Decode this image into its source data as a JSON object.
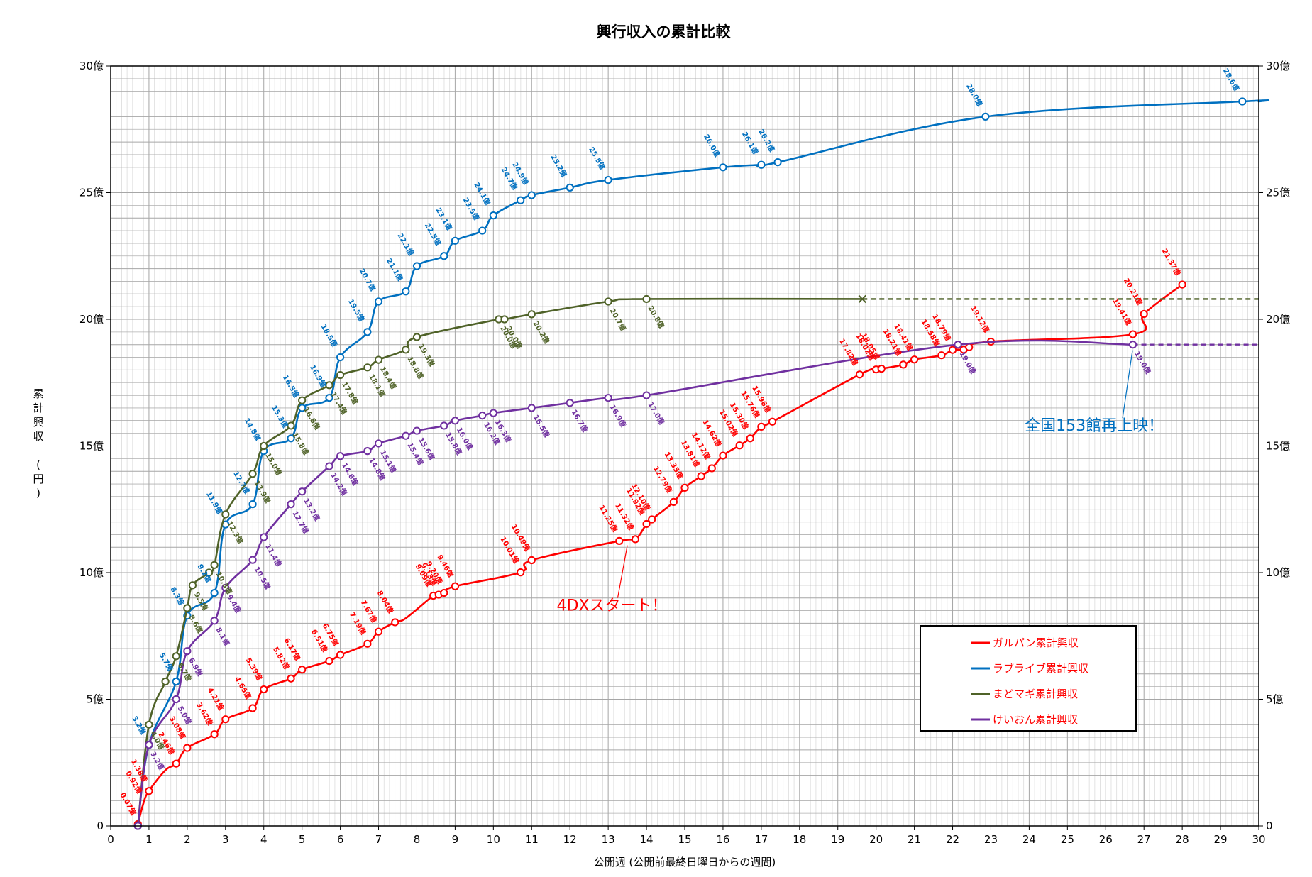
{
  "chart_data": {
    "type": "line",
    "title": "興行収入の累計比較",
    "xlabel": "公開週 (公開前最終日曜日からの週間)",
    "ylabel": "累計興収 (円)",
    "xlim": [
      0,
      30
    ],
    "ylim": [
      0,
      30
    ],
    "x_ticks": [
      "0",
      "1",
      "2",
      "3",
      "4",
      "5",
      "6",
      "7",
      "8",
      "9",
      "10",
      "11",
      "12",
      "13",
      "14",
      "15",
      "16",
      "17",
      "18",
      "19",
      "20",
      "21",
      "22",
      "23",
      "24",
      "25",
      "26",
      "27",
      "28",
      "29",
      "30"
    ],
    "y_ticks_left": [
      "0",
      "5億",
      "10億",
      "15億",
      "20億",
      "25億",
      "30億"
    ],
    "y_ticks_right": [
      "0",
      "5億",
      "10億",
      "15億",
      "20億",
      "25億",
      "30億"
    ],
    "grid": true,
    "legend_position": "bottom-right",
    "legend_border_color": "#000000",
    "series": [
      {
        "name": "ガルパン累計興収",
        "color": "#FF0000",
        "x": [
          0.71,
          0.86,
          1.0,
          1.43,
          1.71,
          2.0,
          2.71,
          3.0,
          3.71,
          4.0,
          4.71,
          5.0,
          5.71,
          6.0,
          6.71,
          7.0,
          7.43,
          7.71,
          8.43,
          8.57,
          8.71,
          9.0,
          10.71,
          11.0,
          13.29,
          13.71,
          14.0,
          14.14,
          14.71,
          15.0,
          15.43,
          15.71,
          16.0,
          16.43,
          16.71,
          17.0,
          17.29,
          19.57,
          20.0,
          20.14,
          20.71,
          21.0,
          21.71,
          22.0,
          22.29,
          22.43,
          23.0,
          26.71,
          27.0,
          28.0
        ],
        "y": [
          0.07,
          0.92,
          1.38,
          2.2,
          2.46,
          3.08,
          3.62,
          4.21,
          4.65,
          5.39,
          5.82,
          6.17,
          6.51,
          6.75,
          7.19,
          7.67,
          8.04,
          8.2,
          9.09,
          9.13,
          9.2,
          9.46,
          10.01,
          10.49,
          11.25,
          11.32,
          11.92,
          12.1,
          12.79,
          13.35,
          13.81,
          14.12,
          14.62,
          15.02,
          15.3,
          15.76,
          15.96,
          17.82,
          18.02,
          18.05,
          18.21,
          18.41,
          18.58,
          18.79,
          18.8,
          18.9,
          19.12,
          19.41,
          20.21,
          21.37
        ],
        "labels": [
          "0.07億",
          "0.92億",
          "1.38億",
          "",
          "2.46億",
          "3.08億",
          "3.62億",
          "4.21億",
          "4.65億",
          "5.39億",
          "5.82億",
          "6.17億",
          "6.51億",
          "6.75億",
          "7.19億",
          "7.67億",
          "8.04億",
          "",
          "9.09億",
          "9.13億",
          "9.20億",
          "9.46億",
          "10.01億",
          "10.49億",
          "11.25億",
          "11.32億",
          "11.92億",
          "12.10億",
          "12.79億",
          "13.35億",
          "13.81億",
          "14.12億",
          "14.62億",
          "15.02億",
          "15.30億",
          "15.76億",
          "15.96億",
          "17.82億",
          "18.02億",
          "18.05億",
          "18.21億",
          "18.41億",
          "18.58億",
          "18.79億",
          "",
          "",
          "19.12億",
          "19.41億",
          "20.21億",
          "21.37億"
        ],
        "markers": [
          0,
          2,
          4,
          5,
          6,
          7,
          8,
          9,
          10,
          11,
          12,
          13,
          14,
          15,
          16,
          18,
          19,
          20,
          21,
          22,
          23,
          24,
          25,
          26,
          27,
          28,
          29,
          30,
          31,
          32,
          33,
          34,
          35,
          36,
          37,
          38,
          39,
          40,
          41,
          42,
          43,
          44,
          45,
          46,
          47,
          48,
          49
        ],
        "end_style": "none"
      },
      {
        "name": "ラブライブ累計興収",
        "color": "#0070C0",
        "x": [
          0.71,
          1.0,
          1.71,
          2.0,
          2.71,
          3.0,
          3.71,
          4.0,
          4.71,
          5.0,
          5.71,
          6.0,
          6.71,
          7.0,
          7.71,
          8.0,
          8.71,
          9.0,
          9.71,
          10.0,
          10.71,
          11.0,
          12.0,
          13.0,
          16.0,
          17.0,
          17.43,
          22.86,
          29.57,
          30.0
        ],
        "y": [
          0,
          3.2,
          5.7,
          8.3,
          9.2,
          11.9,
          12.7,
          14.8,
          15.3,
          16.5,
          16.9,
          18.5,
          19.5,
          20.7,
          21.1,
          22.1,
          22.5,
          23.1,
          23.5,
          24.1,
          24.7,
          24.9,
          25.2,
          25.5,
          26.0,
          26.1,
          26.2,
          28.0,
          28.6,
          28.6
        ],
        "labels": [
          "",
          "3.2億",
          "5.7億",
          "8.3億",
          "9.2億",
          "11.9億",
          "12.7億",
          "14.8億",
          "15.3億",
          "16.5億",
          "16.9億",
          "18.5億",
          "19.5億",
          "20.7億",
          "21.1億",
          "22.1億",
          "22.5億",
          "23.1億",
          "23.5億",
          "24.1億",
          "24.7億",
          "24.9億",
          "25.2億",
          "25.5億",
          "26.0億",
          "26.1億",
          "26.2億",
          "28.0億",
          "28.6億",
          ""
        ],
        "markers": [
          0,
          1,
          2,
          3,
          4,
          5,
          6,
          7,
          8,
          9,
          10,
          11,
          12,
          13,
          14,
          15,
          16,
          17,
          18,
          19,
          20,
          21,
          22,
          23,
          24,
          25,
          26,
          27,
          28
        ],
        "end_style": "dashed-extension"
      },
      {
        "name": "まどマギ累計興収",
        "color": "#4F6228",
        "x": [
          0.71,
          1.0,
          1.43,
          1.71,
          2.0,
          2.14,
          2.57,
          2.71,
          3.0,
          3.71,
          4.0,
          4.71,
          5.0,
          5.71,
          6.0,
          6.71,
          7.0,
          7.71,
          8.0,
          10.14,
          10.29,
          11.0,
          13.0,
          14.0,
          19.64
        ],
        "y": [
          0,
          4.0,
          5.7,
          6.7,
          8.6,
          9.5,
          10.0,
          10.3,
          12.3,
          13.9,
          15.0,
          15.8,
          16.8,
          17.4,
          17.8,
          18.1,
          18.4,
          18.8,
          19.3,
          20.0,
          20.0,
          20.2,
          20.7,
          20.8,
          20.8
        ],
        "labels": [
          "",
          "4.0億",
          "",
          "6.7億",
          "8.6億",
          "9.5億",
          "",
          "10.3億",
          "12.3億",
          "13.9億",
          "15.0億",
          "15.8億",
          "16.8億",
          "17.4億",
          "17.8億",
          "18.1億",
          "18.4億",
          "18.8億",
          "19.3億",
          "20.0億",
          "20.0億",
          "20.2億",
          "20.7億",
          "20.8億",
          ""
        ],
        "markers": [
          0,
          1,
          2,
          3,
          4,
          5,
          6,
          7,
          8,
          9,
          10,
          11,
          12,
          13,
          14,
          15,
          16,
          17,
          18,
          19,
          20,
          21,
          22,
          23
        ],
        "end_style": "cross-then-dashed"
      },
      {
        "name": "けいおん累計興収",
        "color": "#7030A0",
        "x": [
          0.71,
          1.0,
          1.71,
          2.0,
          2.71,
          3.0,
          3.71,
          4.0,
          4.71,
          5.0,
          5.71,
          6.0,
          6.71,
          7.0,
          7.71,
          8.0,
          8.71,
          9.0,
          9.71,
          10.0,
          11.0,
          12.0,
          13.0,
          14.0,
          22.14,
          26.71
        ],
        "y": [
          0,
          3.2,
          5.0,
          6.9,
          8.1,
          9.4,
          10.5,
          11.4,
          12.7,
          13.2,
          14.2,
          14.6,
          14.8,
          15.1,
          15.4,
          15.6,
          15.8,
          16.0,
          16.2,
          16.3,
          16.5,
          16.7,
          16.9,
          17.0,
          19.0,
          19.0
        ],
        "labels": [
          "",
          "3.2億",
          "5.0億",
          "6.9億",
          "8.1億",
          "9.4億",
          "10.5億",
          "11.4億",
          "12.7億",
          "13.2億",
          "14.2億",
          "14.6億",
          "14.8億",
          "15.1億",
          "15.4億",
          "15.6億",
          "15.8億",
          "16.0億",
          "16.2億",
          "16.3億",
          "16.5億",
          "16.7億",
          "16.9億",
          "17.0億",
          "19.0億",
          "19.0億"
        ],
        "markers": [
          0,
          1,
          2,
          3,
          4,
          5,
          6,
          7,
          8,
          9,
          10,
          11,
          12,
          13,
          14,
          15,
          16,
          17,
          18,
          19,
          20,
          21,
          22,
          23,
          24,
          25
        ],
        "end_style": "dashed-extension"
      }
    ],
    "annotations": [
      {
        "text": "4DXスタート！",
        "color": "#FF0000",
        "x": 13.1,
        "y": 8.5,
        "arrow_to": [
          13.5,
          11.3
        ]
      },
      {
        "text": "全国153館再上映！",
        "color": "#0070C0",
        "x": 25.7,
        "y": 15.6,
        "arrow_to": [
          26.7,
          19.0
        ]
      }
    ]
  }
}
